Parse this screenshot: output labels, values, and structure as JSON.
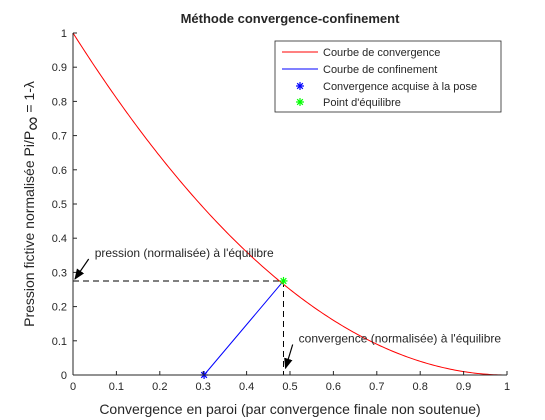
{
  "chart_data": {
    "type": "line",
    "title": "Méthode convergence-confinement",
    "xlabel": "Convergence en paroi (par convergence finale non soutenue)",
    "ylabel": "Pression fictive normalisée Pi/P",
    "ylabel_sub": "∞",
    "ylabel_suffix": " = 1-λ",
    "xlim": [
      0,
      1
    ],
    "ylim": [
      0,
      1
    ],
    "x_ticks": [
      0,
      0.1,
      0.2,
      0.3,
      0.4,
      0.5,
      0.6,
      0.7,
      0.8,
      0.9,
      1
    ],
    "y_ticks": [
      0,
      0.1,
      0.2,
      0.3,
      0.4,
      0.5,
      0.6,
      0.7,
      0.8,
      0.9,
      1
    ],
    "x_tick_labels": [
      "0",
      "0.1",
      "0.2",
      "0.3",
      "0.4",
      "0.5",
      "0.6",
      "0.7",
      "0.8",
      "0.9",
      "1"
    ],
    "y_tick_labels": [
      "0",
      "0.1",
      "0.2",
      "0.3",
      "0.4",
      "0.5",
      "0.6",
      "0.7",
      "0.8",
      "0.9",
      "1"
    ],
    "grid": false,
    "legend_position": "top-right",
    "series": [
      {
        "name": "Courbe de convergence",
        "color": "#ff0000",
        "style": "line",
        "x": [
          0,
          0.05,
          0.1,
          0.15,
          0.2,
          0.25,
          0.3,
          0.35,
          0.4,
          0.45,
          0.485,
          0.5,
          0.55,
          0.6,
          0.65,
          0.7,
          0.75,
          0.8,
          0.85,
          0.9,
          0.95,
          1
        ],
        "y": [
          1,
          0.902,
          0.81,
          0.723,
          0.64,
          0.563,
          0.49,
          0.423,
          0.36,
          0.303,
          0.275,
          0.25,
          0.203,
          0.16,
          0.123,
          0.09,
          0.063,
          0.04,
          0.023,
          0.01,
          0.003,
          0
        ]
      },
      {
        "name": "Courbe de confinement",
        "color": "#0000ff",
        "style": "line",
        "x": [
          0.302,
          0.485
        ],
        "y": [
          0,
          0.275
        ]
      },
      {
        "name": "Convergence acquise à la pose",
        "color": "#0000ff",
        "style": "marker-asterisk",
        "x": [
          0.302
        ],
        "y": [
          0
        ]
      },
      {
        "name": "Point d'équilibre",
        "color": "#00ff00",
        "style": "marker-asterisk",
        "x": [
          0.485
        ],
        "y": [
          0.275
        ]
      }
    ],
    "annotations": [
      {
        "text": "pression (normalisée) à l'équilibre",
        "arrow_to": [
          0,
          0.275
        ],
        "text_at": [
          0.05,
          0.345
        ]
      },
      {
        "text": "convergence (normalisée) à l'équilibre",
        "arrow_to": [
          0.485,
          0
        ],
        "text_at": [
          0.52,
          0.095
        ]
      }
    ],
    "guide_lines": [
      {
        "from": [
          0,
          0.275
        ],
        "to": [
          0.485,
          0.275
        ],
        "color": "#000000",
        "dash": true
      },
      {
        "from": [
          0.485,
          0.275
        ],
        "to": [
          0.485,
          0
        ],
        "color": "#000000",
        "dash": true
      }
    ]
  }
}
